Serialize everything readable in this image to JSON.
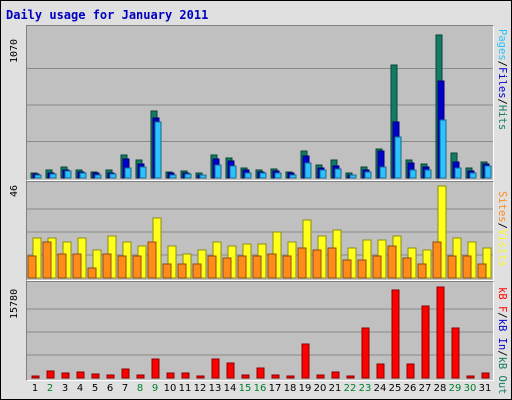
{
  "title": "Daily usage for January 2011",
  "colors": {
    "hits": "#127b63",
    "files": "#0000cc",
    "pages": "#2ac2ff",
    "visits": "#ffff1a",
    "sites": "#ff8c1a",
    "kbytes": "#ff0000",
    "weekend_day": "#00802b",
    "weekday": "#000000",
    "title": "#0000c0"
  },
  "chart_data": [
    {
      "type": "bar",
      "name": "hits-files-pages",
      "scale_max_label": "1070",
      "right_labels": [
        {
          "text": "Pages",
          "color": "#2ac2ff"
        },
        {
          "text": "Files",
          "color": "#0000cc"
        },
        {
          "text": "Hits",
          "color": "#127b63"
        }
      ],
      "categories": [
        "1",
        "2",
        "3",
        "4",
        "5",
        "6",
        "7",
        "8",
        "9",
        "10",
        "11",
        "12",
        "13",
        "14",
        "15",
        "16",
        "17",
        "18",
        "19",
        "20",
        "21",
        "22",
        "23",
        "24",
        "25",
        "26",
        "27",
        "28",
        "29",
        "30",
        "31"
      ],
      "series": [
        {
          "name": "Hits",
          "values": [
            40,
            55,
            80,
            60,
            45,
            55,
            170,
            135,
            490,
            45,
            50,
            35,
            165,
            145,
            70,
            60,
            65,
            45,
            200,
            95,
            130,
            35,
            80,
            210,
            830,
            135,
            105,
            1045,
            185,
            70,
            120
          ]
        },
        {
          "name": "Files",
          "values": [
            30,
            40,
            60,
            45,
            35,
            40,
            140,
            100,
            440,
            35,
            40,
            25,
            140,
            125,
            55,
            45,
            50,
            35,
            160,
            70,
            90,
            25,
            60,
            200,
            410,
            110,
            80,
            710,
            115,
            50,
            105
          ]
        },
        {
          "name": "Pages",
          "values": [
            25,
            30,
            50,
            35,
            25,
            30,
            75,
            80,
            410,
            25,
            30,
            20,
            95,
            90,
            40,
            35,
            40,
            25,
            110,
            55,
            65,
            20,
            45,
            80,
            300,
            60,
            55,
            425,
            70,
            40,
            90
          ]
        }
      ],
      "ylim": [
        0,
        1070
      ]
    },
    {
      "type": "bar",
      "name": "visits-sites",
      "scale_max_label": "46",
      "right_labels": [
        {
          "text": "Sites",
          "color": "#ff8c1a"
        },
        {
          "text": "Visits",
          "color": "#ffff1a"
        }
      ],
      "categories": [
        "1",
        "2",
        "3",
        "4",
        "5",
        "6",
        "7",
        "8",
        "9",
        "10",
        "11",
        "12",
        "13",
        "14",
        "15",
        "16",
        "17",
        "18",
        "19",
        "20",
        "21",
        "22",
        "23",
        "24",
        "25",
        "26",
        "27",
        "28",
        "29",
        "30",
        "31"
      ],
      "series": [
        {
          "name": "Visits",
          "values": [
            20,
            20,
            18,
            20,
            14,
            21,
            18,
            16,
            30,
            16,
            12,
            14,
            18,
            16,
            17,
            17,
            23,
            18,
            29,
            21,
            24,
            15,
            19,
            19,
            21,
            15,
            14,
            46,
            20,
            18,
            15
          ]
        },
        {
          "name": "Sites",
          "values": [
            11,
            18,
            12,
            12,
            5,
            12,
            11,
            11,
            18,
            7,
            7,
            7,
            11,
            10,
            11,
            11,
            12,
            11,
            15,
            14,
            15,
            9,
            9,
            11,
            16,
            10,
            7,
            18,
            11,
            11,
            7
          ]
        }
      ],
      "ylim": [
        0,
        46
      ]
    },
    {
      "type": "bar",
      "name": "kbytes",
      "scale_max_label": "15780",
      "right_labels": [
        {
          "text": "kB F",
          "color": "#ff0000"
        },
        {
          "text": "kB In",
          "color": "#0000cc"
        },
        {
          "text": "kB Out",
          "color": "#127b63"
        }
      ],
      "categories": [
        "1",
        "2",
        "3",
        "4",
        "5",
        "6",
        "7",
        "8",
        "9",
        "10",
        "11",
        "12",
        "13",
        "14",
        "15",
        "16",
        "17",
        "18",
        "19",
        "20",
        "21",
        "22",
        "23",
        "24",
        "25",
        "26",
        "27",
        "28",
        "29",
        "30",
        "31"
      ],
      "series": [
        {
          "name": "kB F",
          "values": [
            400,
            1200,
            900,
            1000,
            700,
            500,
            1500,
            500,
            3300,
            900,
            800,
            400,
            3300,
            2500,
            600,
            1800,
            500,
            400,
            5800,
            500,
            1100,
            400,
            8500,
            2400,
            15100,
            2400,
            12400,
            15600,
            8500,
            400,
            900
          ]
        }
      ],
      "ylim": [
        0,
        15780
      ]
    }
  ],
  "weekend_days": [
    2,
    8,
    9,
    15,
    16,
    22,
    23,
    29,
    30
  ]
}
